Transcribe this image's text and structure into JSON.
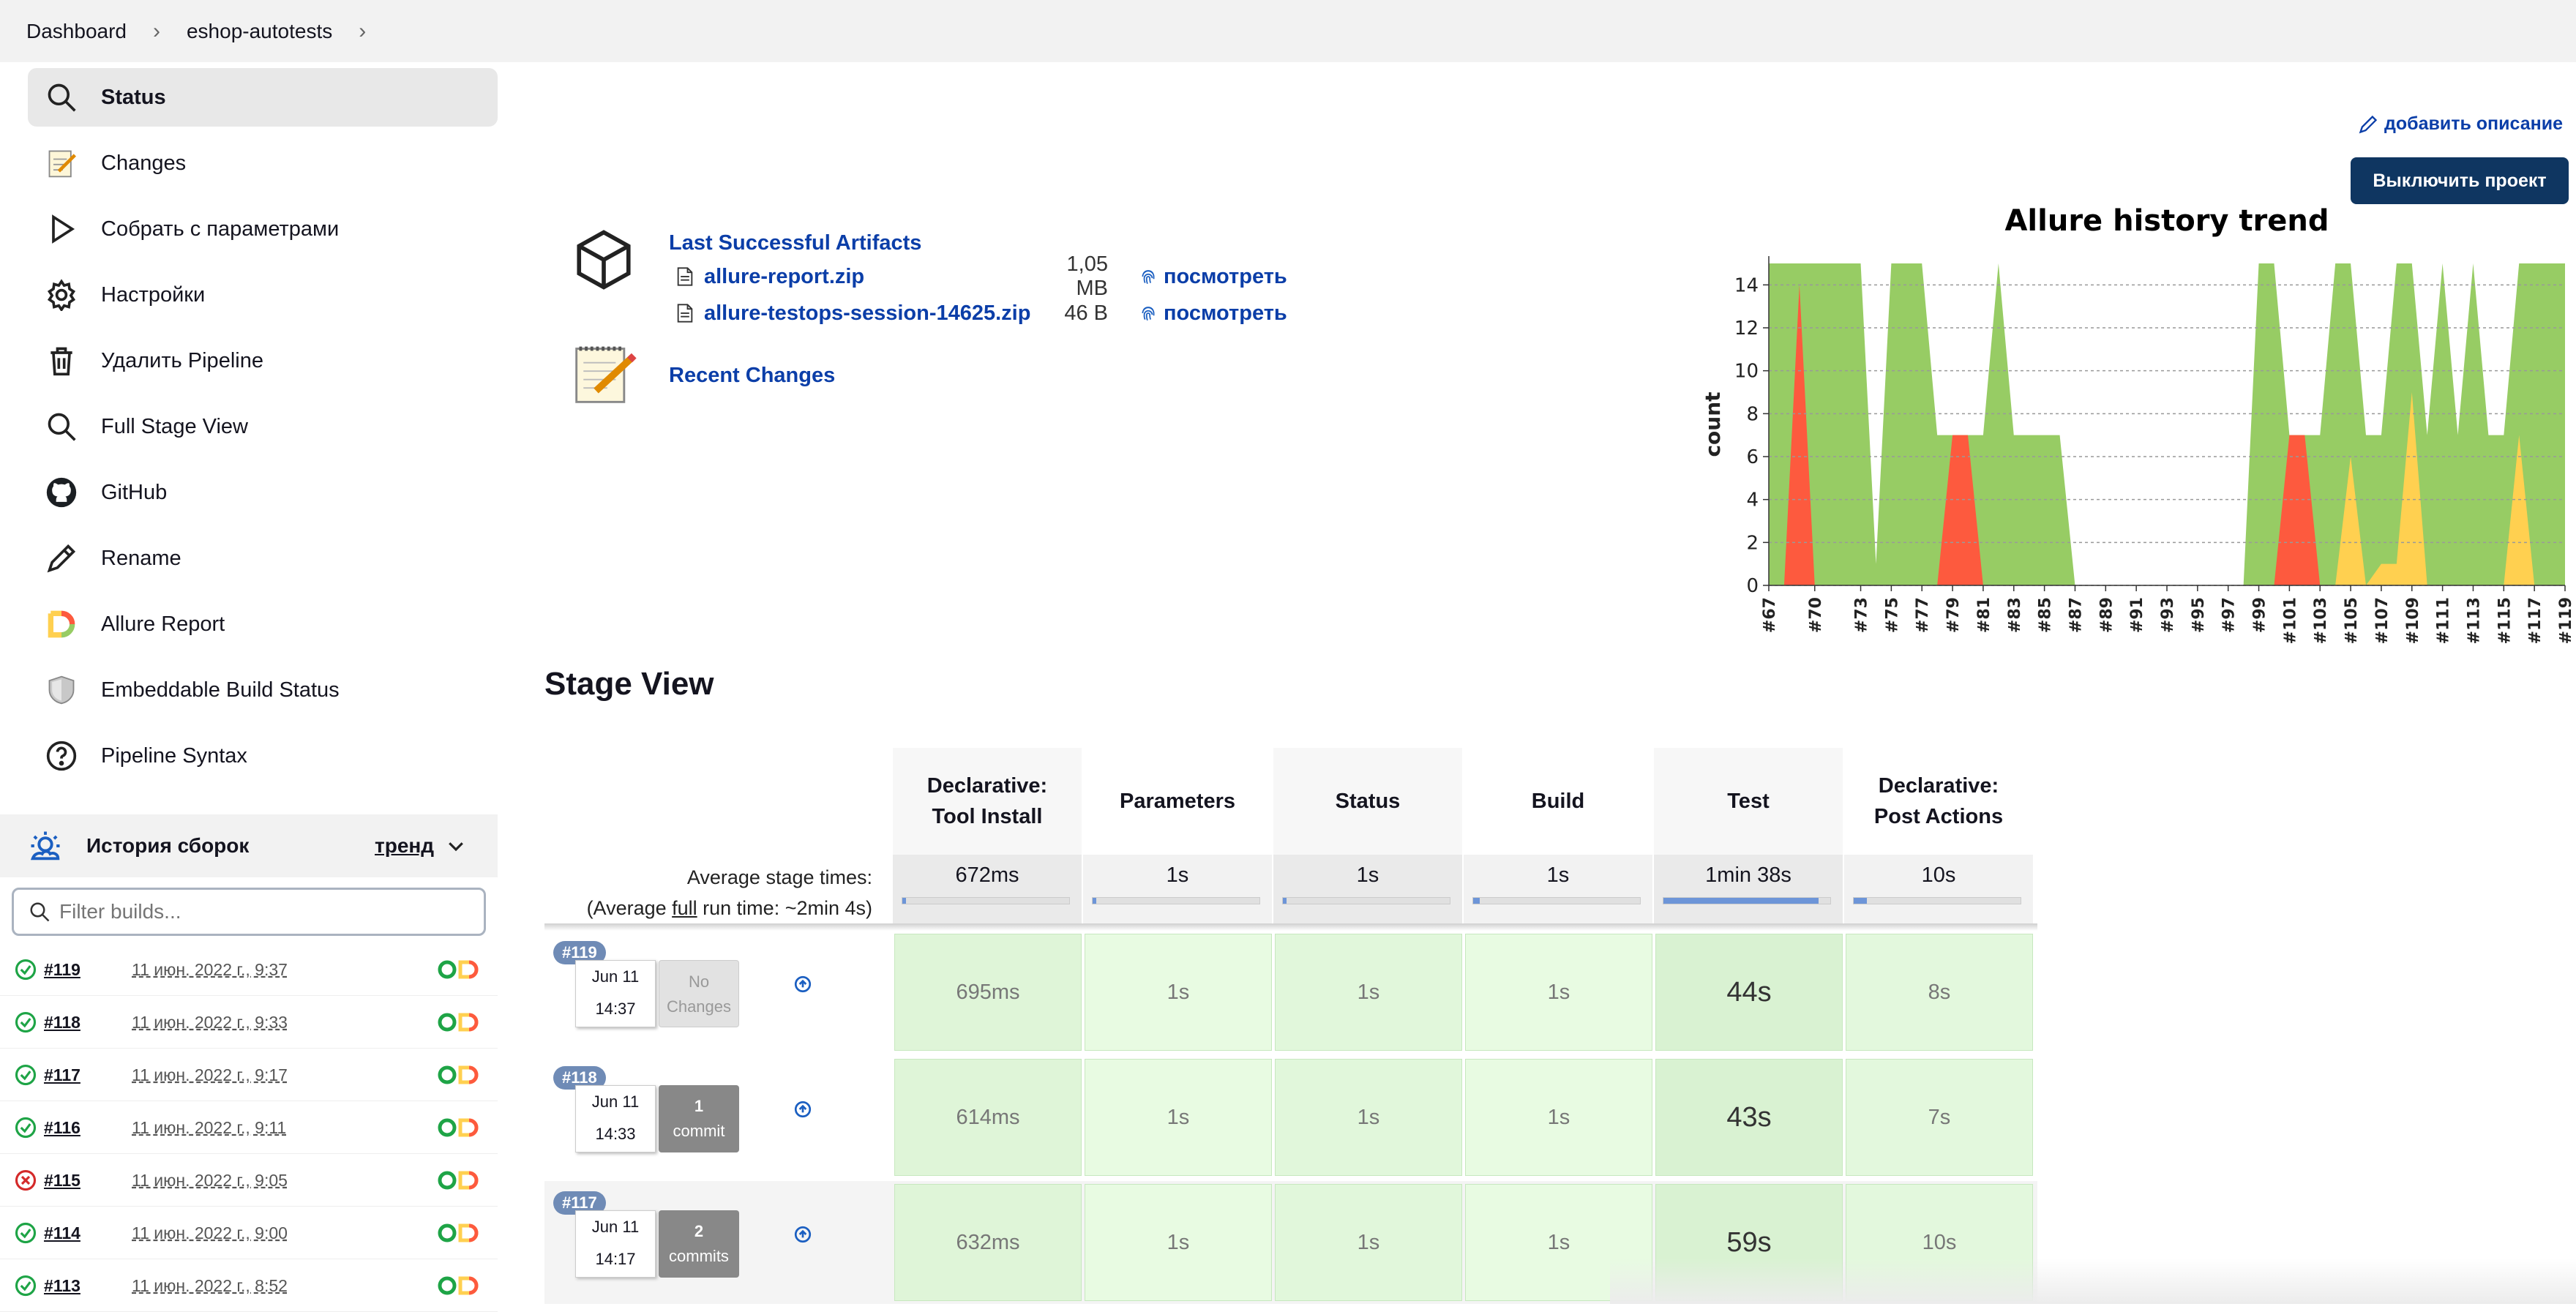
{
  "breadcrumb": {
    "items": [
      "Dashboard",
      "eshop-autotests"
    ]
  },
  "sidebar": {
    "tasks": [
      {
        "label": "Status",
        "icon": "search-icon"
      },
      {
        "label": "Changes",
        "icon": "notepad-icon"
      },
      {
        "label": "Собрать с параметрами",
        "icon": "play-icon"
      },
      {
        "label": "Настройки",
        "icon": "gear-icon"
      },
      {
        "label": "Удалить Pipeline",
        "icon": "trash-icon"
      },
      {
        "label": "Full Stage View",
        "icon": "search-icon"
      },
      {
        "label": "GitHub",
        "icon": "github-icon"
      },
      {
        "label": "Rename",
        "icon": "pencil-icon"
      },
      {
        "label": "Allure Report",
        "icon": "allure-icon"
      },
      {
        "label": "Embeddable Build Status",
        "icon": "shield-icon"
      },
      {
        "label": "Pipeline Syntax",
        "icon": "help-icon"
      }
    ]
  },
  "history": {
    "title": "История сборок",
    "trend_label": "тренд",
    "filter_placeholder": "Filter builds...",
    "builds": [
      {
        "number": "#119",
        "date": "11 июн. 2022 г., 9:37",
        "status": "success"
      },
      {
        "number": "#118",
        "date": "11 июн. 2022 г., 9:33",
        "status": "success"
      },
      {
        "number": "#117",
        "date": "11 июн. 2022 г., 9:17",
        "status": "success"
      },
      {
        "number": "#116",
        "date": "11 июн. 2022 г., 9:11",
        "status": "success"
      },
      {
        "number": "#115",
        "date": "11 июн. 2022 г., 9:05",
        "status": "failed"
      },
      {
        "number": "#114",
        "date": "11 июн. 2022 г., 9:00",
        "status": "success"
      },
      {
        "number": "#113",
        "date": "11 июн. 2022 г., 8:52",
        "status": "success"
      }
    ]
  },
  "main": {
    "add_description": "добавить описание",
    "disable_button": "Выключить проект",
    "artifacts_title": "Last Successful Artifacts",
    "artifacts": [
      {
        "name": "allure-report.zip",
        "size": "1,05 MB",
        "view": "посмотреть"
      },
      {
        "name": "allure-testops-session-14625.zip",
        "size": "46 B",
        "view": "посмотреть"
      }
    ],
    "recent_changes": "Recent Changes"
  },
  "chart_data": {
    "type": "area",
    "title": "Allure history trend",
    "ylabel": "count",
    "ylim": [
      0,
      15
    ],
    "yticks": [
      0,
      2,
      4,
      6,
      8,
      10,
      12,
      14
    ],
    "x": [
      "#67",
      "#68",
      "#69",
      "#70",
      "#71",
      "#72",
      "#73",
      "#74",
      "#75",
      "#76",
      "#77",
      "#78",
      "#79",
      "#80",
      "#81",
      "#82",
      "#83",
      "#84",
      "#85",
      "#86",
      "#87",
      "#88",
      "#89",
      "#90",
      "#91",
      "#92",
      "#93",
      "#94",
      "#95",
      "#96",
      "#97",
      "#98",
      "#99",
      "#100",
      "#101",
      "#102",
      "#103",
      "#104",
      "#105",
      "#106",
      "#107",
      "#108",
      "#109",
      "#110",
      "#111",
      "#112",
      "#113",
      "#114",
      "#115",
      "#116",
      "#117",
      "#118",
      "#119"
    ],
    "xticks": [
      "#67",
      "#70",
      "#73",
      "#75",
      "#77",
      "#79",
      "#81",
      "#83",
      "#85",
      "#87",
      "#89",
      "#91",
      "#93",
      "#95",
      "#97",
      "#99",
      "#101",
      "#103",
      "#105",
      "#107",
      "#109",
      "#111",
      "#113",
      "#115",
      "#117",
      "#119"
    ],
    "series": [
      {
        "name": "passed",
        "color": "#97cc64",
        "values": [
          15,
          15,
          15,
          15,
          15,
          15,
          15,
          1,
          15,
          15,
          15,
          7,
          7,
          7,
          7,
          15,
          7,
          7,
          7,
          7,
          0,
          0,
          0,
          0,
          0,
          0,
          0,
          0,
          0,
          0,
          0,
          0,
          15,
          15,
          7,
          7,
          7,
          15,
          15,
          7,
          7,
          15,
          15,
          7,
          15,
          7,
          15,
          7,
          7,
          15,
          15,
          15,
          15
        ]
      },
      {
        "name": "failed",
        "color": "#fd5a3e",
        "values": [
          0,
          0,
          14,
          0,
          0,
          0,
          0,
          0,
          0,
          0,
          0,
          0,
          7,
          7,
          0,
          0,
          0,
          0,
          0,
          0,
          0,
          0,
          0,
          0,
          0,
          0,
          0,
          0,
          0,
          0,
          0,
          0,
          0,
          0,
          7,
          7,
          0,
          0,
          0,
          0,
          0,
          0,
          5,
          0,
          0,
          0,
          0,
          0,
          0,
          0,
          0,
          0,
          0
        ]
      },
      {
        "name": "broken",
        "color": "#ffd050",
        "values": [
          0,
          0,
          0,
          0,
          0,
          0,
          0,
          0,
          0,
          0,
          0,
          0,
          0,
          0,
          0,
          0,
          0,
          0,
          0,
          0,
          0,
          0,
          0,
          0,
          0,
          0,
          0,
          0,
          0,
          0,
          0,
          0,
          0,
          0,
          0,
          0,
          0,
          0,
          6,
          0,
          1,
          1,
          9,
          0,
          0,
          0,
          0,
          0,
          0,
          7,
          0,
          0,
          0
        ]
      }
    ]
  },
  "stage_view": {
    "title": "Stage View",
    "avg_label_line1": "Average stage times:",
    "avg_label_line2_pre": "(Average ",
    "avg_label_line2_link": "full",
    "avg_label_line2_post": " run time: ~2min 4s)",
    "stages": [
      {
        "name_l1": "Declarative:",
        "name_l2": "Tool Install",
        "avg": "672ms",
        "avg_frac": 0.02
      },
      {
        "name_l1": "Parameters",
        "name_l2": "",
        "avg": "1s",
        "avg_frac": 0.02
      },
      {
        "name_l1": "Status",
        "name_l2": "",
        "avg": "1s",
        "avg_frac": 0.02
      },
      {
        "name_l1": "Build",
        "name_l2": "",
        "avg": "1s",
        "avg_frac": 0.04
      },
      {
        "name_l1": "Test",
        "name_l2": "",
        "avg": "1min 38s",
        "avg_frac": 0.93
      },
      {
        "name_l1": "Declarative:",
        "name_l2": "Post Actions",
        "avg": "10s",
        "avg_frac": 0.08
      }
    ],
    "runs": [
      {
        "badge": "#119",
        "date": "Jun 11",
        "time": "14:37",
        "changes_l1": "No",
        "changes_l2": "Changes",
        "has_changes": false,
        "cells": [
          "695ms",
          "1s",
          "1s",
          "1s",
          "44s",
          "8s"
        ]
      },
      {
        "badge": "#118",
        "date": "Jun 11",
        "time": "14:33",
        "changes_l1": "1",
        "changes_l2": "commit",
        "has_changes": true,
        "cells": [
          "614ms",
          "1s",
          "1s",
          "1s",
          "43s",
          "7s"
        ]
      },
      {
        "badge": "#117",
        "date": "Jun 11",
        "time": "14:17",
        "changes_l1": "2",
        "changes_l2": "commits",
        "has_changes": true,
        "cells": [
          "632ms",
          "1s",
          "1s",
          "1s",
          "59s",
          "10s"
        ]
      }
    ]
  }
}
